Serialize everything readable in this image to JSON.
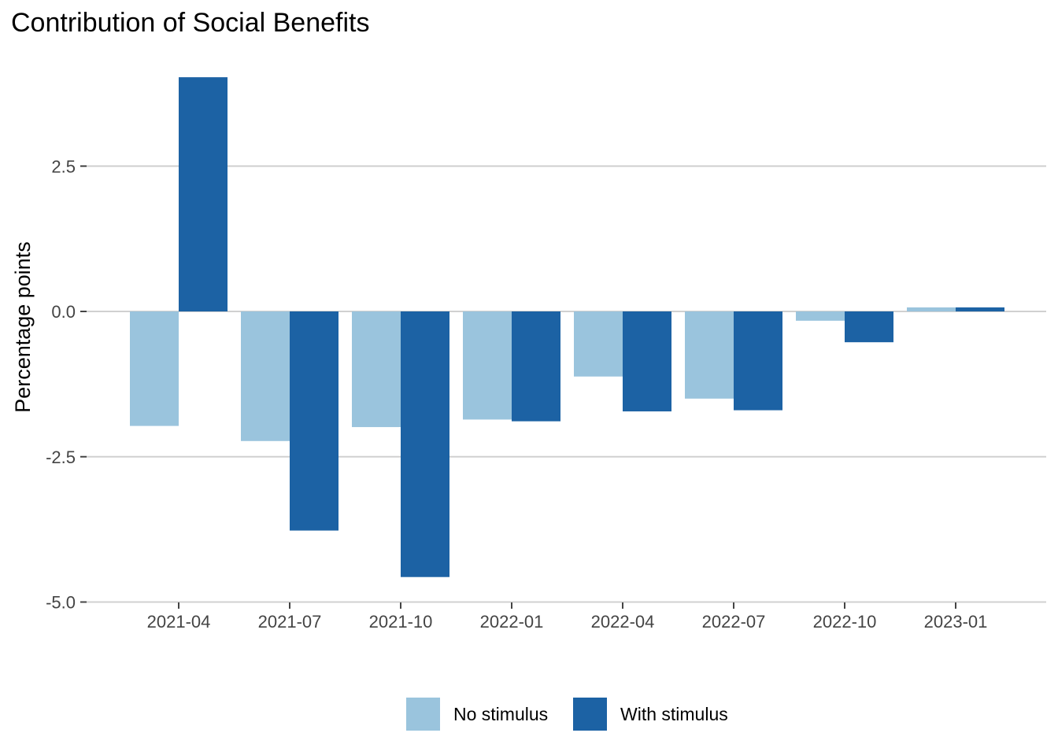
{
  "chart_data": {
    "type": "bar",
    "title": "Contribution of Social Benefits",
    "xlabel": "",
    "ylabel": "Percentage points",
    "categories": [
      "2021-04",
      "2021-07",
      "2021-10",
      "2022-01",
      "2022-04",
      "2022-07",
      "2022-10",
      "2023-01"
    ],
    "series": [
      {
        "name": "No stimulus",
        "color": "#9ac4dd",
        "values": [
          -1.97,
          -2.23,
          -1.99,
          -1.86,
          -1.12,
          -1.5,
          -0.16,
          0.07
        ]
      },
      {
        "name": "With stimulus",
        "color": "#1c62a4",
        "values": [
          4.03,
          -3.77,
          -4.57,
          -1.89,
          -1.72,
          -1.7,
          -0.53,
          0.07
        ]
      }
    ],
    "yticks": [
      -5.0,
      -2.5,
      0.0,
      2.5
    ],
    "ytick_labels": [
      "-5.0",
      "-2.5",
      "0.0",
      "2.5"
    ],
    "ylim": [
      -5.0,
      4.5
    ],
    "grid": true,
    "legend_position": "bottom"
  }
}
